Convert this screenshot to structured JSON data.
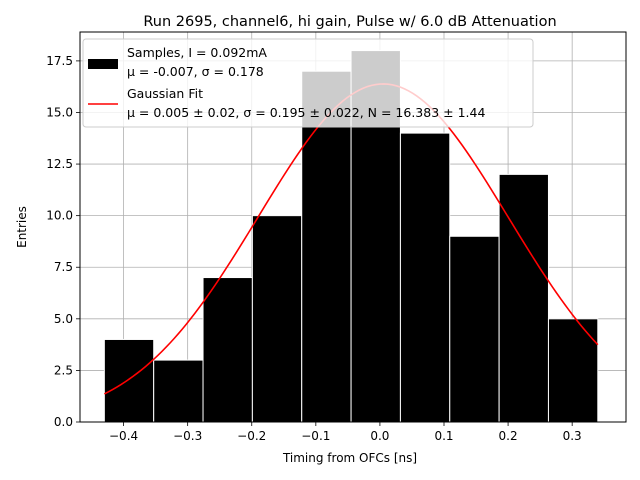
{
  "chart_data": {
    "type": "bar",
    "title": "Run 2695, channel6, hi gain, Pulse w/ 6.0 dB Attenuation",
    "xlabel": "Timing from OFCs [ns]",
    "ylabel": "Entries",
    "xlim": [
      -0.468,
      0.384
    ],
    "ylim": [
      0,
      18.9
    ],
    "xticks": [
      -0.4,
      -0.3,
      -0.2,
      -0.1,
      0.0,
      0.1,
      0.2,
      0.3
    ],
    "xtick_labels": [
      "−0.4",
      "−0.3",
      "−0.2",
      "−0.1",
      "0.0",
      "0.1",
      "0.2",
      "0.3"
    ],
    "yticks": [
      0,
      2.5,
      5,
      7.5,
      10,
      12.5,
      15,
      17.5
    ],
    "ytick_labels": [
      "0.0",
      "2.5",
      "5.0",
      "7.5",
      "10.0",
      "12.5",
      "15.0",
      "17.5"
    ],
    "grid": true,
    "histogram": {
      "name": "Samples, I = 0.092mA",
      "stats": "μ = -0.007, σ = 0.178",
      "bin_edges": [
        -0.43,
        -0.353,
        -0.276,
        -0.199,
        -0.122,
        -0.045,
        0.032,
        0.109,
        0.186,
        0.263,
        0.34
      ],
      "counts": [
        4,
        3,
        7,
        10,
        17,
        18,
        14,
        9,
        12,
        5
      ],
      "color": "#000000"
    },
    "fit": {
      "name": "Gaussian Fit",
      "params": "μ = 0.005 ± 0.02, σ = 0.195 ± 0.022, N = 16.383 ± 1.44",
      "mu": 0.005,
      "sigma": 0.195,
      "N": 16.383,
      "x_range": [
        -0.43,
        0.34
      ],
      "color": "#ff0000"
    },
    "legend": {
      "position": "top-left",
      "entries": [
        {
          "line1": "Samples, I = 0.092mA",
          "line2": "μ = -0.007, σ = 0.178"
        },
        {
          "line1": "Gaussian Fit",
          "line2": "μ = 0.005 ± 0.02, σ = 0.195 ± 0.022, N = 16.383 ± 1.44"
        }
      ]
    }
  }
}
